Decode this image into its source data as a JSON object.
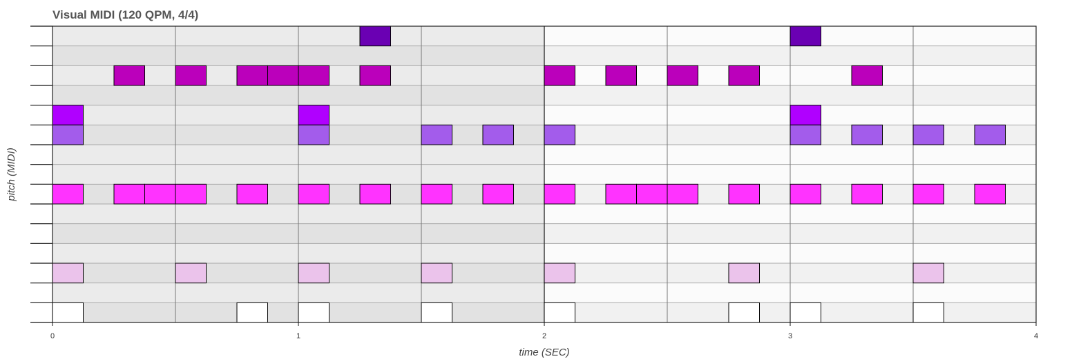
{
  "chart_data": {
    "type": "piano-roll",
    "title": "Visual MIDI (120 QPM, 4/4)",
    "xlabel": "time (SEC)",
    "ylabel": "pitch (MIDI)",
    "xlim": [
      0,
      4
    ],
    "x_ticks": [
      "0",
      "1",
      "2",
      "3",
      "4"
    ],
    "row_count": 15,
    "bar_duration_sec": 2,
    "beat_duration_sec": 0.5,
    "note_duration_sec": 0.125,
    "grid": true,
    "notes": [
      {
        "t": 1.25,
        "row": 14,
        "color": "#6a00b3"
      },
      {
        "t": 3.0,
        "row": 14,
        "color": "#6a00b3"
      },
      {
        "t": 0.25,
        "row": 12,
        "color": "#bb00bb"
      },
      {
        "t": 0.5,
        "row": 12,
        "color": "#bb00bb"
      },
      {
        "t": 0.75,
        "row": 12,
        "color": "#bb00bb"
      },
      {
        "t": 0.875,
        "row": 12,
        "color": "#bb00bb"
      },
      {
        "t": 1.0,
        "row": 12,
        "color": "#bb00bb"
      },
      {
        "t": 1.25,
        "row": 12,
        "color": "#bb00bb"
      },
      {
        "t": 2.0,
        "row": 12,
        "color": "#bb00bb"
      },
      {
        "t": 2.25,
        "row": 12,
        "color": "#bb00bb"
      },
      {
        "t": 2.5,
        "row": 12,
        "color": "#bb00bb"
      },
      {
        "t": 2.75,
        "row": 12,
        "color": "#bb00bb"
      },
      {
        "t": 3.25,
        "row": 12,
        "color": "#bb00bb"
      },
      {
        "t": 0.0,
        "row": 10,
        "color": "#b000ff"
      },
      {
        "t": 1.0,
        "row": 10,
        "color": "#b000ff"
      },
      {
        "t": 3.0,
        "row": 10,
        "color": "#b000ff"
      },
      {
        "t": 0.0,
        "row": 9,
        "color": "#a35ceb"
      },
      {
        "t": 1.0,
        "row": 9,
        "color": "#a35ceb"
      },
      {
        "t": 1.5,
        "row": 9,
        "color": "#a35ceb"
      },
      {
        "t": 1.75,
        "row": 9,
        "color": "#a35ceb"
      },
      {
        "t": 2.0,
        "row": 9,
        "color": "#a35ceb"
      },
      {
        "t": 3.0,
        "row": 9,
        "color": "#a35ceb"
      },
      {
        "t": 3.25,
        "row": 9,
        "color": "#a35ceb"
      },
      {
        "t": 3.5,
        "row": 9,
        "color": "#a35ceb"
      },
      {
        "t": 3.75,
        "row": 9,
        "color": "#a35ceb"
      },
      {
        "t": 0.0,
        "row": 6,
        "color": "#ff33ff"
      },
      {
        "t": 0.25,
        "row": 6,
        "color": "#ff33ff"
      },
      {
        "t": 0.375,
        "row": 6,
        "color": "#ff33ff"
      },
      {
        "t": 0.5,
        "row": 6,
        "color": "#ff33ff"
      },
      {
        "t": 0.75,
        "row": 6,
        "color": "#ff33ff"
      },
      {
        "t": 1.0,
        "row": 6,
        "color": "#ff33ff"
      },
      {
        "t": 1.25,
        "row": 6,
        "color": "#ff33ff"
      },
      {
        "t": 1.5,
        "row": 6,
        "color": "#ff33ff"
      },
      {
        "t": 1.75,
        "row": 6,
        "color": "#ff33ff"
      },
      {
        "t": 2.0,
        "row": 6,
        "color": "#ff33ff"
      },
      {
        "t": 2.25,
        "row": 6,
        "color": "#ff33ff"
      },
      {
        "t": 2.375,
        "row": 6,
        "color": "#ff33ff"
      },
      {
        "t": 2.5,
        "row": 6,
        "color": "#ff33ff"
      },
      {
        "t": 2.75,
        "row": 6,
        "color": "#ff33ff"
      },
      {
        "t": 3.0,
        "row": 6,
        "color": "#ff33ff"
      },
      {
        "t": 3.25,
        "row": 6,
        "color": "#ff33ff"
      },
      {
        "t": 3.5,
        "row": 6,
        "color": "#ff33ff"
      },
      {
        "t": 3.75,
        "row": 6,
        "color": "#ff33ff"
      },
      {
        "t": 0.0,
        "row": 2,
        "color": "#ebc3eb"
      },
      {
        "t": 0.5,
        "row": 2,
        "color": "#ebc3eb"
      },
      {
        "t": 1.0,
        "row": 2,
        "color": "#ebc3eb"
      },
      {
        "t": 1.5,
        "row": 2,
        "color": "#ebc3eb"
      },
      {
        "t": 2.0,
        "row": 2,
        "color": "#ebc3eb"
      },
      {
        "t": 2.75,
        "row": 2,
        "color": "#ebc3eb"
      },
      {
        "t": 3.5,
        "row": 2,
        "color": "#ebc3eb"
      },
      {
        "t": 0.0,
        "row": 0,
        "color": "#ffffff"
      },
      {
        "t": 0.75,
        "row": 0,
        "color": "#ffffff"
      },
      {
        "t": 1.0,
        "row": 0,
        "color": "#ffffff"
      },
      {
        "t": 1.5,
        "row": 0,
        "color": "#ffffff"
      },
      {
        "t": 2.0,
        "row": 0,
        "color": "#ffffff"
      },
      {
        "t": 2.75,
        "row": 0,
        "color": "#ffffff"
      },
      {
        "t": 3.0,
        "row": 0,
        "color": "#ffffff"
      },
      {
        "t": 3.5,
        "row": 0,
        "color": "#ffffff"
      }
    ],
    "colors": {
      "bar_even_light_row": "#ebebeb",
      "bar_even_dark_row": "#e2e2e2",
      "bar_odd_light_row": "#fbfbfb",
      "bar_odd_dark_row": "#f1f1f1",
      "grid_row": "#a8a8a8",
      "grid_beat": "#777777",
      "grid_bar": "#333333",
      "note_border": "#000000"
    }
  }
}
